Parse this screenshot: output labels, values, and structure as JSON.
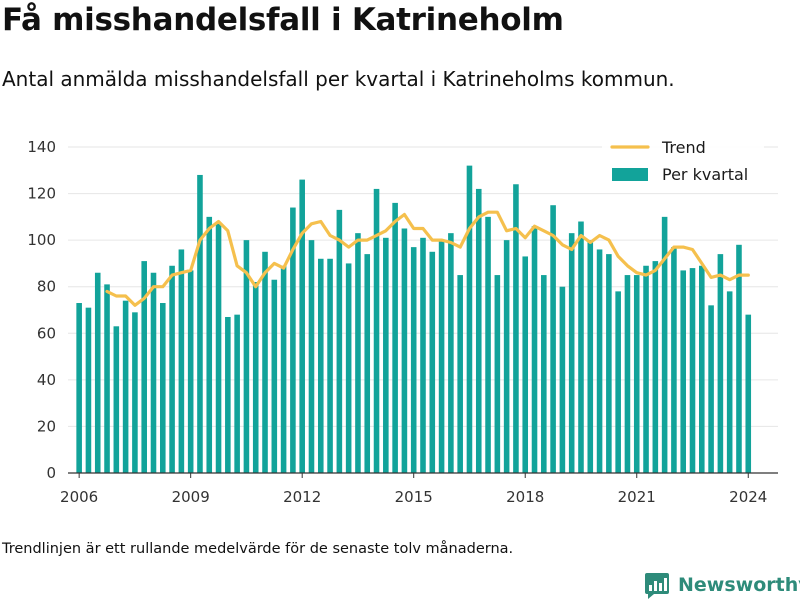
{
  "title": "Få misshandelsfall i Katrineholm",
  "subtitle": "Antal anmälda misshandelsfall per kvartal i Katrineholms kommun.",
  "footnote": "Trendlinjen är ett rullande medelvärde för de senaste tolv månaderna.",
  "brand": "Newsworthy",
  "colors": {
    "bars": "#12a39a",
    "trend": "#f5c04d",
    "brand": "#2e8b7a",
    "grid": "#e6e6e6",
    "axis": "#333333"
  },
  "chart_data": {
    "type": "bar",
    "grid": true,
    "legend_position": "top-right",
    "ylim": [
      0,
      140
    ],
    "yticks": [
      0,
      20,
      40,
      60,
      80,
      100,
      120,
      140
    ],
    "xlim": [
      2005.7,
      2024.8
    ],
    "xticks": [
      2006,
      2009,
      2012,
      2015,
      2018,
      2021,
      2024
    ],
    "series": [
      {
        "name": "Per kvartal",
        "kind": "bar",
        "x": [
          2006.0,
          2006.25,
          2006.5,
          2006.75,
          2007.0,
          2007.25,
          2007.5,
          2007.75,
          2008.0,
          2008.25,
          2008.5,
          2008.75,
          2009.0,
          2009.25,
          2009.5,
          2009.75,
          2010.0,
          2010.25,
          2010.5,
          2010.75,
          2011.0,
          2011.25,
          2011.5,
          2011.75,
          2012.0,
          2012.25,
          2012.5,
          2012.75,
          2013.0,
          2013.25,
          2013.5,
          2013.75,
          2014.0,
          2014.25,
          2014.5,
          2014.75,
          2015.0,
          2015.25,
          2015.5,
          2015.75,
          2016.0,
          2016.25,
          2016.5,
          2016.75,
          2017.0,
          2017.25,
          2017.5,
          2017.75,
          2018.0,
          2018.25,
          2018.5,
          2018.75,
          2019.0,
          2019.25,
          2019.5,
          2019.75,
          2020.0,
          2020.25,
          2020.5,
          2020.75,
          2021.0,
          2021.25,
          2021.5,
          2021.75,
          2022.0,
          2022.25,
          2022.5,
          2022.75,
          2023.0,
          2023.25,
          2023.5,
          2023.75,
          2024.0
        ],
        "values": [
          73,
          71,
          86,
          81,
          63,
          74,
          69,
          91,
          86,
          73,
          89,
          96,
          87,
          128,
          110,
          107,
          67,
          68,
          100,
          82,
          95,
          83,
          89,
          114,
          126,
          100,
          92,
          92,
          113,
          90,
          103,
          94,
          122,
          101,
          116,
          105,
          97,
          101,
          95,
          100,
          103,
          85,
          132,
          122,
          110,
          85,
          100,
          124,
          93,
          106,
          85,
          115,
          80,
          103,
          108,
          100,
          96,
          94,
          78,
          85,
          85,
          89,
          91,
          110,
          97,
          87,
          88,
          89,
          72,
          94,
          78,
          98,
          68
        ]
      },
      {
        "name": "Trend",
        "kind": "line",
        "x": [
          2006.75,
          2007.0,
          2007.25,
          2007.5,
          2007.75,
          2008.0,
          2008.25,
          2008.5,
          2008.75,
          2009.0,
          2009.25,
          2009.5,
          2009.75,
          2010.0,
          2010.25,
          2010.5,
          2010.75,
          2011.0,
          2011.25,
          2011.5,
          2011.75,
          2012.0,
          2012.25,
          2012.5,
          2012.75,
          2013.0,
          2013.25,
          2013.5,
          2013.75,
          2014.0,
          2014.25,
          2014.5,
          2014.75,
          2015.0,
          2015.25,
          2015.5,
          2015.75,
          2016.0,
          2016.25,
          2016.5,
          2016.75,
          2017.0,
          2017.25,
          2017.5,
          2017.75,
          2018.0,
          2018.25,
          2018.5,
          2018.75,
          2019.0,
          2019.25,
          2019.5,
          2019.75,
          2020.0,
          2020.25,
          2020.5,
          2020.75,
          2021.0,
          2021.25,
          2021.5,
          2021.75,
          2022.0,
          2022.25,
          2022.5,
          2022.75,
          2023.0,
          2023.25,
          2023.5,
          2023.75,
          2024.0
        ],
        "values": [
          78,
          76,
          76,
          72,
          75,
          80,
          80,
          85,
          86,
          87,
          100,
          105,
          108,
          104,
          89,
          86,
          80,
          86,
          90,
          88,
          96,
          103,
          107,
          108,
          102,
          100,
          97,
          100,
          100,
          102,
          104,
          108,
          111,
          105,
          105,
          100,
          100,
          99,
          97,
          105,
          110,
          112,
          112,
          104,
          105,
          101,
          106,
          104,
          102,
          98,
          96,
          102,
          99,
          102,
          100,
          93,
          89,
          86,
          85,
          87,
          92,
          97,
          97,
          96,
          90,
          84,
          85,
          83,
          85,
          85
        ]
      }
    ]
  }
}
